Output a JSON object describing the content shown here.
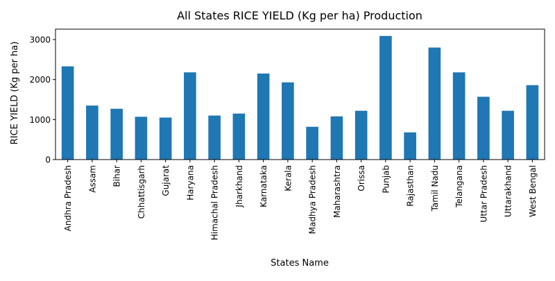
{
  "chart_data": {
    "type": "bar",
    "title": "All States RICE YIELD (Kg per ha) Production",
    "xlabel": "States Name",
    "ylabel": "RICE YIELD (Kg per ha)",
    "categories": [
      "Andhra Pradesh",
      "Assam",
      "Bihar",
      "Chhattisgarh",
      "Gujarat",
      "Haryana",
      "Himachal Pradesh",
      "Jharkhand",
      "Karnataka",
      "Kerala",
      "Madhya Pradesh",
      "Maharashtra",
      "Orissa",
      "Punjab",
      "Rajasthan",
      "Tamil Nadu",
      "Telangana",
      "Uttar Pradesh",
      "Uttarakhand",
      "West Bengal"
    ],
    "values": [
      2330,
      1350,
      1270,
      1070,
      1050,
      2180,
      1100,
      1150,
      2150,
      1930,
      820,
      1080,
      1220,
      3090,
      680,
      2800,
      2180,
      1570,
      1220,
      1860
    ],
    "ylim": [
      0,
      3260
    ],
    "yticks": [
      0,
      1000,
      2000,
      3000
    ],
    "grid": false,
    "legend": "none",
    "colors": {
      "bar": "#1f77b4",
      "axis": "#000000",
      "background": "#ffffff"
    }
  }
}
